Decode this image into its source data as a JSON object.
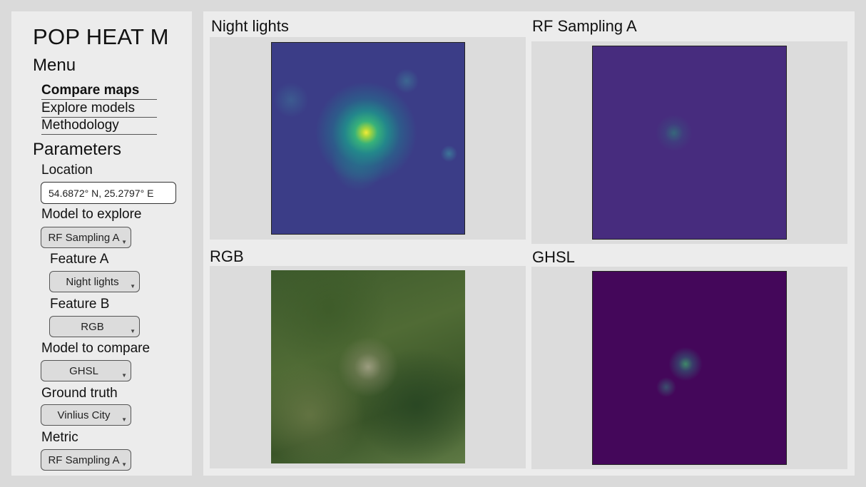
{
  "sidebar": {
    "app_title": "POP HEAT M",
    "menu_heading": "Menu",
    "menu": [
      {
        "label": "Compare maps",
        "active": true
      },
      {
        "label": "Explore models",
        "active": false
      },
      {
        "label": "Methodology",
        "active": false
      }
    ],
    "params_heading": "Parameters",
    "location": {
      "label": "Location",
      "value": "54.6872° N, 25.2797° E"
    },
    "model_to_explore": {
      "label": "Model to explore",
      "value": "RF Sampling A"
    },
    "feature_a": {
      "label": "Feature A",
      "value": "Night lights"
    },
    "feature_b": {
      "label": "Feature B",
      "value": "RGB"
    },
    "model_to_compare": {
      "label": "Model to compare",
      "value": "GHSL"
    },
    "ground_truth": {
      "label": "Ground truth",
      "value": "Vinlius City"
    },
    "metric": {
      "label": "Metric",
      "value": "RF Sampling A"
    }
  },
  "panels": {
    "night_lights": {
      "title": "Night lights"
    },
    "rf_sampling": {
      "title": "RF Sampling A"
    },
    "rgb": {
      "title": "RGB"
    },
    "ghsl": {
      "title": "GHSL"
    }
  },
  "icons": {
    "dropdown": "chevron-down-icon"
  },
  "colors": {
    "background": "#dadada",
    "panel": "#ececec",
    "map_frame": "#dcdcdc"
  }
}
